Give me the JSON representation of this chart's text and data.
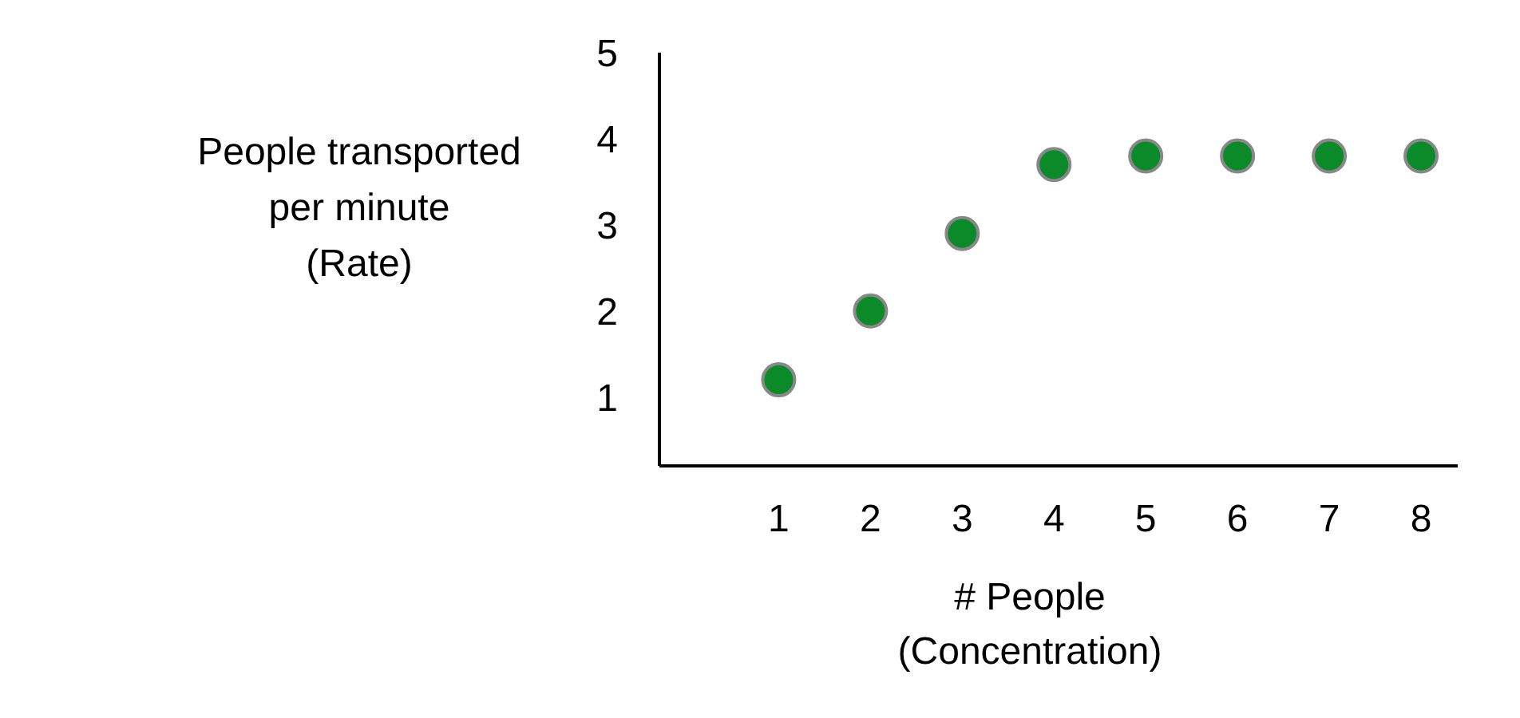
{
  "chart_data": {
    "type": "scatter",
    "xlabel": "# People\n(Concentration)",
    "ylabel": "People transported\nper minute\n(Rate)",
    "x": [
      1,
      2,
      3,
      4,
      5,
      6,
      7,
      8
    ],
    "values": [
      1.2,
      2.0,
      2.9,
      3.7,
      3.8,
      3.8,
      3.8,
      3.8
    ],
    "color": "#0b8a2a",
    "marker": "circle",
    "xlim": [
      -0.3,
      8.4
    ],
    "xticks": [
      1,
      2,
      3,
      4,
      5,
      6,
      7,
      8
    ],
    "ylim": [
      0.2,
      5
    ],
    "yticks": [
      1,
      2,
      3,
      4,
      5
    ],
    "grid": false
  }
}
